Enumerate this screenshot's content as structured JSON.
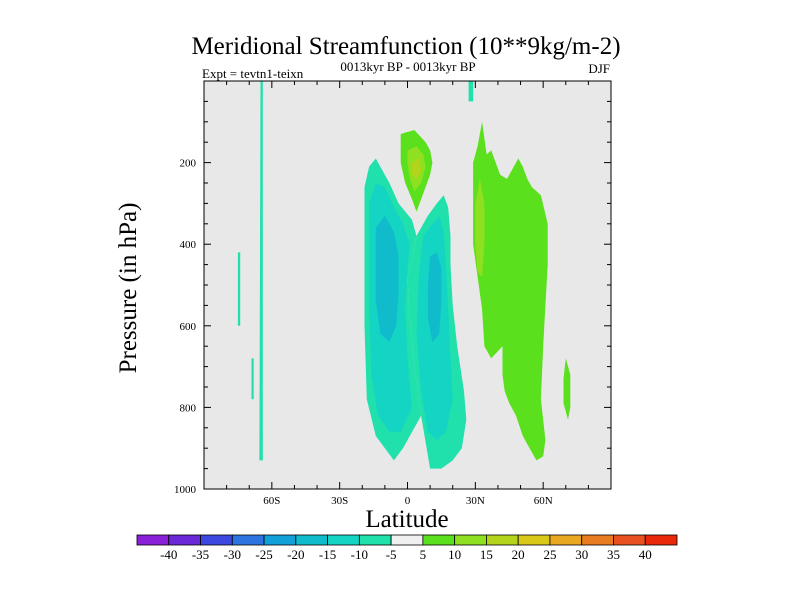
{
  "chart_data": {
    "type": "contour",
    "title": "Meridional Streamfunction (10**9kg/m-2)",
    "subtitle": "0013kyr BP - 0013kyr BP",
    "left_label": "Expt = tevtn1-teixn",
    "right_label": "DJF",
    "xlabel": "Latitude",
    "ylabel": "Pressure (in hPa)",
    "xlim": [
      -90,
      90
    ],
    "ylim": [
      0,
      1000
    ],
    "x_ticks": [
      {
        "value": -60,
        "label": "60S"
      },
      {
        "value": -30,
        "label": "30S"
      },
      {
        "value": 0,
        "label": "0"
      },
      {
        "value": 30,
        "label": "30N"
      },
      {
        "value": 60,
        "label": "60N"
      }
    ],
    "y_ticks": [
      {
        "value": 200,
        "label": "200"
      },
      {
        "value": 400,
        "label": "400"
      },
      {
        "value": 600,
        "label": "600"
      },
      {
        "value": 800,
        "label": "800"
      },
      {
        "value": 1000,
        "label": "1000"
      }
    ],
    "colorbar": {
      "labels": [
        "-40",
        "-35",
        "-30",
        "-25",
        "-20",
        "-15",
        "-10",
        "-5",
        "5",
        "10",
        "15",
        "20",
        "25",
        "30",
        "35",
        "40"
      ],
      "colors": [
        "#8a20d8",
        "#6a28d6",
        "#3c48e0",
        "#2e74e0",
        "#12a0d8",
        "#10bccc",
        "#14d4c4",
        "#20e0ac",
        "#f0f0f0",
        "#5ae01c",
        "#8ee020",
        "#b4d41c",
        "#d8c818",
        "#e8a820",
        "#e87c20",
        "#e85020",
        "#e82808"
      ]
    },
    "regions": [
      {
        "name": "-10 to -5 band near 65S",
        "value": -7.5,
        "color": "#20e0ac",
        "points": [
          [
            -65,
            0
          ],
          [
            -64,
            0
          ],
          [
            -64,
            930
          ],
          [
            -65.5,
            930
          ]
        ]
      },
      {
        "name": "-10 to -5 band near 75S",
        "value": -7.5,
        "color": "#20e0ac",
        "points": [
          [
            -75,
            420
          ],
          [
            -74,
            420
          ],
          [
            -74,
            600
          ],
          [
            -75,
            600
          ]
        ]
      },
      {
        "name": "-10 to -5 band near 68S",
        "value": -7.5,
        "color": "#20e0ac",
        "points": [
          [
            -69,
            680
          ],
          [
            -68,
            680
          ],
          [
            -68,
            780
          ],
          [
            -69,
            780
          ]
        ]
      },
      {
        "name": "-10 to -5 top strip near 28N",
        "value": -7.5,
        "color": "#20e0ac",
        "points": [
          [
            27,
            0
          ],
          [
            29,
            0
          ],
          [
            29,
            50
          ],
          [
            27,
            50
          ]
        ]
      },
      {
        "name": "-10 to -5 southern cell",
        "value": -7.5,
        "color": "#20e0ac",
        "points": [
          [
            -19,
            260
          ],
          [
            -17,
            210
          ],
          [
            -14,
            190
          ],
          [
            -11,
            220
          ],
          [
            -8,
            250
          ],
          [
            -4,
            300
          ],
          [
            2,
            340
          ],
          [
            4,
            380
          ],
          [
            2,
            440
          ],
          [
            0,
            480
          ],
          [
            1,
            580
          ],
          [
            3,
            700
          ],
          [
            6,
            820
          ],
          [
            -2,
            900
          ],
          [
            -6,
            930
          ],
          [
            -10,
            900
          ],
          [
            -14,
            870
          ],
          [
            -18,
            780
          ],
          [
            -19,
            600
          ]
        ]
      },
      {
        "name": "-10 to -5 northern cell",
        "value": -7.5,
        "color": "#20e0ac",
        "points": [
          [
            4,
            380
          ],
          [
            9,
            330
          ],
          [
            13,
            300
          ],
          [
            16,
            280
          ],
          [
            18,
            310
          ],
          [
            19,
            380
          ],
          [
            19,
            450
          ],
          [
            20,
            550
          ],
          [
            22,
            650
          ],
          [
            25,
            760
          ],
          [
            26,
            830
          ],
          [
            24,
            900
          ],
          [
            20,
            930
          ],
          [
            15,
            950
          ],
          [
            10,
            950
          ],
          [
            6,
            820
          ],
          [
            3,
            700
          ],
          [
            1,
            580
          ],
          [
            0,
            480
          ],
          [
            2,
            440
          ]
        ]
      },
      {
        "name": "-15 to -10 southern core",
        "value": -12.5,
        "color": "#14d4c4",
        "points": [
          [
            -17,
            300
          ],
          [
            -14,
            250
          ],
          [
            -10,
            260
          ],
          [
            -6,
            310
          ],
          [
            -2,
            350
          ],
          [
            1,
            400
          ],
          [
            0,
            460
          ],
          [
            -1,
            560
          ],
          [
            0,
            680
          ],
          [
            2,
            800
          ],
          [
            -3,
            860
          ],
          [
            -8,
            860
          ],
          [
            -13,
            820
          ],
          [
            -16,
            720
          ],
          [
            -17,
            550
          ]
        ]
      },
      {
        "name": "-15 to -10 northern core",
        "value": -12.5,
        "color": "#14d4c4",
        "points": [
          [
            7,
            380
          ],
          [
            11,
            350
          ],
          [
            14,
            330
          ],
          [
            16,
            370
          ],
          [
            17,
            450
          ],
          [
            18,
            560
          ],
          [
            19,
            680
          ],
          [
            20,
            780
          ],
          [
            17,
            860
          ],
          [
            13,
            880
          ],
          [
            9,
            860
          ],
          [
            6,
            760
          ],
          [
            4,
            620
          ],
          [
            5,
            480
          ]
        ]
      },
      {
        "name": "-20 to -15 southern core",
        "value": -17.5,
        "color": "#10bccc",
        "points": [
          [
            -14,
            360
          ],
          [
            -10,
            330
          ],
          [
            -6,
            370
          ],
          [
            -4,
            430
          ],
          [
            -4,
            520
          ],
          [
            -5,
            600
          ],
          [
            -8,
            640
          ],
          [
            -12,
            620
          ],
          [
            -14,
            540
          ]
        ]
      },
      {
        "name": "-20 to -15 northern core",
        "value": -17.5,
        "color": "#10bccc",
        "points": [
          [
            10,
            430
          ],
          [
            13,
            420
          ],
          [
            15,
            460
          ],
          [
            15,
            540
          ],
          [
            14,
            620
          ],
          [
            11,
            640
          ],
          [
            9,
            580
          ],
          [
            9,
            500
          ]
        ]
      },
      {
        "name": "5 to 10 upper cell",
        "value": 7.5,
        "color": "#5ae01c",
        "points": [
          [
            -3,
            130
          ],
          [
            3,
            120
          ],
          [
            8,
            150
          ],
          [
            10,
            170
          ],
          [
            11,
            200
          ],
          [
            10,
            230
          ],
          [
            8,
            260
          ],
          [
            6,
            290
          ],
          [
            4,
            320
          ],
          [
            2,
            290
          ],
          [
            -1,
            250
          ],
          [
            -3,
            200
          ]
        ]
      },
      {
        "name": "5 to 10 large northern cell",
        "value": 7.5,
        "color": "#5ae01c",
        "points": [
          [
            29,
            200
          ],
          [
            31,
            160
          ],
          [
            33,
            100
          ],
          [
            35,
            180
          ],
          [
            37,
            170
          ],
          [
            39,
            200
          ],
          [
            41,
            230
          ],
          [
            44,
            240
          ],
          [
            46,
            220
          ],
          [
            49,
            190
          ],
          [
            51,
            210
          ],
          [
            53,
            240
          ],
          [
            55,
            260
          ],
          [
            59,
            280
          ],
          [
            62,
            350
          ],
          [
            62,
            450
          ],
          [
            61,
            550
          ],
          [
            60,
            650
          ],
          [
            59,
            780
          ],
          [
            61,
            880
          ],
          [
            60,
            920
          ],
          [
            57,
            930
          ],
          [
            54,
            900
          ],
          [
            51,
            870
          ],
          [
            48,
            820
          ],
          [
            45,
            790
          ],
          [
            43,
            760
          ],
          [
            42,
            720
          ],
          [
            42,
            650
          ],
          [
            37,
            680
          ],
          [
            34,
            650
          ],
          [
            33,
            560
          ],
          [
            31,
            480
          ],
          [
            29,
            400
          ],
          [
            29,
            300
          ]
        ]
      },
      {
        "name": "5 to 10 cell near 70N",
        "value": 7.5,
        "color": "#5ae01c",
        "points": [
          [
            70,
            680
          ],
          [
            72,
            720
          ],
          [
            72,
            800
          ],
          [
            71,
            830
          ],
          [
            69,
            790
          ],
          [
            69,
            730
          ]
        ]
      },
      {
        "name": "10 to 15 upper core",
        "value": 12.5,
        "color": "#8ee020",
        "points": [
          [
            0,
            170
          ],
          [
            4,
            160
          ],
          [
            7,
            180
          ],
          [
            8,
            210
          ],
          [
            6,
            250
          ],
          [
            3,
            270
          ],
          [
            1,
            240
          ],
          [
            0,
            200
          ]
        ]
      },
      {
        "name": "10 to 15 northern core",
        "value": 12.5,
        "color": "#8ee020",
        "points": [
          [
            30,
            300
          ],
          [
            32,
            240
          ],
          [
            34,
            300
          ],
          [
            34,
            400
          ],
          [
            33,
            480
          ],
          [
            31,
            470
          ],
          [
            30,
            400
          ]
        ]
      },
      {
        "name": "15 to 20 upper core",
        "value": 17.5,
        "color": "#b4d41c",
        "points": [
          [
            2,
            200
          ],
          [
            5,
            190
          ],
          [
            6,
            220
          ],
          [
            4,
            240
          ],
          [
            2,
            230
          ]
        ]
      }
    ]
  }
}
